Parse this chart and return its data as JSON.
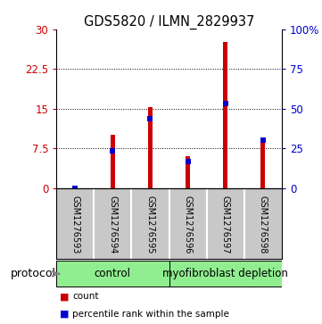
{
  "title": "GDS5820 / ILMN_2829937",
  "samples": [
    "GSM1276593",
    "GSM1276594",
    "GSM1276595",
    "GSM1276596",
    "GSM1276597",
    "GSM1276598"
  ],
  "counts": [
    0.05,
    10.0,
    15.2,
    6.0,
    27.5,
    9.0
  ],
  "percentile_ranks_scaled": [
    0.0,
    7.0,
    13.0,
    5.0,
    16.0,
    9.0
  ],
  "ylim_left": [
    0,
    30
  ],
  "ylim_right": [
    0,
    100
  ],
  "yticks_left": [
    0,
    7.5,
    15,
    22.5,
    30
  ],
  "yticks_right": [
    0,
    25,
    50,
    75,
    100
  ],
  "ytick_labels_left": [
    "0",
    "7.5",
    "15",
    "22.5",
    "30"
  ],
  "ytick_labels_right": [
    "0",
    "25",
    "50",
    "75",
    "100%"
  ],
  "bar_color": "#cc0000",
  "pct_color": "#0000cc",
  "protocol_label": "protocol",
  "legend_count": "count",
  "legend_pct": "percentile rank within the sample",
  "background_color": "#ffffff",
  "sample_bg": "#c8c8c8",
  "group_color": "#90ee90",
  "control_label": "control",
  "myo_label": "myofibroblast depletion",
  "bar_width": 0.12
}
